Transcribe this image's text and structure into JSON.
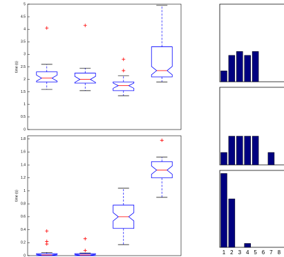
{
  "chart_data": [
    {
      "type": "box",
      "ylabel": "time (s)",
      "ylim": [
        0,
        5
      ],
      "yticks": [
        0,
        0.5,
        1,
        1.5,
        2,
        2.5,
        3,
        3.5,
        4,
        4.5,
        5
      ],
      "color": "#0000ff",
      "median_color": "#ff0000",
      "boxes": [
        {
          "whislo": 1.6,
          "q1": 1.9,
          "med": 2.05,
          "q3": 2.3,
          "whishi": 2.6,
          "fliers": [
            4.05
          ]
        },
        {
          "whislo": 1.55,
          "q1": 1.85,
          "med": 2.0,
          "q3": 2.25,
          "whishi": 2.45,
          "fliers": [
            4.15
          ]
        },
        {
          "whislo": 1.35,
          "q1": 1.55,
          "med": 1.75,
          "q3": 1.9,
          "whishi": 2.15,
          "fliers": [
            2.35,
            2.8
          ]
        },
        {
          "whislo": 1.9,
          "q1": 2.1,
          "med": 2.35,
          "q3": 3.3,
          "whishi": 4.95,
          "fliers": []
        }
      ]
    },
    {
      "type": "box",
      "ylabel": "time (s)",
      "ylim": [
        0,
        1.85
      ],
      "yticks": [
        0,
        0.2,
        0.4,
        0.6,
        0.8,
        1,
        1.2,
        1.4,
        1.6,
        1.8
      ],
      "color": "#0000ff",
      "median_color": "#ff0000",
      "boxes": [
        {
          "whislo": 0,
          "q1": 0,
          "med": 0.01,
          "q3": 0.03,
          "whishi": 0.05,
          "fliers": [
            0.38,
            0.22,
            0.18
          ]
        },
        {
          "whislo": 0,
          "q1": 0,
          "med": 0.01,
          "q3": 0.03,
          "whishi": 0.04,
          "fliers": [
            0.26,
            0.08
          ]
        },
        {
          "whislo": 0.17,
          "q1": 0.42,
          "med": 0.6,
          "q3": 0.78,
          "whishi": 1.04,
          "fliers": []
        },
        {
          "whislo": 0.9,
          "q1": 1.2,
          "med": 1.32,
          "q3": 1.45,
          "whishi": 1.52,
          "fliers": [
            1.78
          ]
        }
      ]
    },
    {
      "type": "bar",
      "ylim": [
        0,
        1
      ],
      "color": "#000080",
      "values": [
        0.14,
        0.34,
        0.39,
        0.34,
        0.39,
        0,
        0,
        0
      ]
    },
    {
      "type": "bar",
      "ylim": [
        0,
        1
      ],
      "color": "#000080",
      "values": [
        0.16,
        0.37,
        0.37,
        0.37,
        0.37,
        0,
        0.16,
        0
      ]
    },
    {
      "type": "bar",
      "ylim": [
        0,
        1
      ],
      "color": "#000080",
      "values": [
        0.96,
        0.63,
        0,
        0.05,
        0,
        0,
        0,
        0
      ],
      "categories": [
        "1",
        "2",
        "3",
        "4",
        "5",
        "6",
        "7",
        "8"
      ]
    }
  ]
}
